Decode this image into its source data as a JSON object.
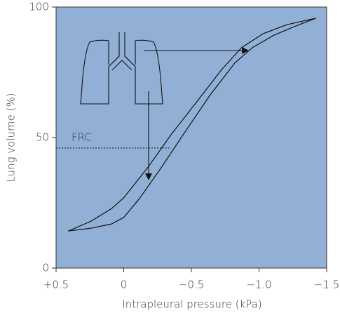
{
  "chart_data": {
    "type": "line",
    "xlabel": "Intrapleural pressure (kPa)",
    "ylabel": "Lung volume (%)",
    "xlim": [
      0.5,
      -1.5
    ],
    "xticks": [
      {
        "value": 0.5,
        "label": "+0.5"
      },
      0,
      {
        "value": -0.5,
        "label": "−0.5"
      },
      {
        "value": -1.0,
        "label": "−1.0"
      },
      {
        "value": -1.5,
        "label": "−1.5"
      }
    ],
    "ylim": [
      0,
      100
    ],
    "yticks": [
      0,
      50,
      100
    ],
    "background": "#92b0d6",
    "series": [
      {
        "color": "#111111",
        "x": [
          0.41,
          0.24,
          0.09,
          0.0,
          -0.18,
          -0.35,
          -0.54,
          -0.72,
          -0.87,
          -1.03,
          -1.21,
          -1.42
        ],
        "values": [
          14.2,
          18.0,
          22.8,
          26.9,
          38.7,
          51.1,
          63.7,
          75.8,
          84.4,
          89.8,
          93.3,
          95.7
        ]
      },
      {
        "color": "#111111",
        "x": [
          0.41,
          0.24,
          0.09,
          0.0,
          -0.12,
          -0.28,
          -0.46,
          -0.64,
          -0.82,
          -0.95,
          -1.11,
          -1.26,
          -1.42
        ],
        "values": [
          14.2,
          15.3,
          16.9,
          19.4,
          26.9,
          38.7,
          52.7,
          66.4,
          78.5,
          84.4,
          89.2,
          92.5,
          95.7
        ]
      }
    ],
    "annotations": [
      {
        "text": "FRC",
        "y": 46,
        "x": [
          0.5,
          -0.35
        ]
      }
    ]
  }
}
